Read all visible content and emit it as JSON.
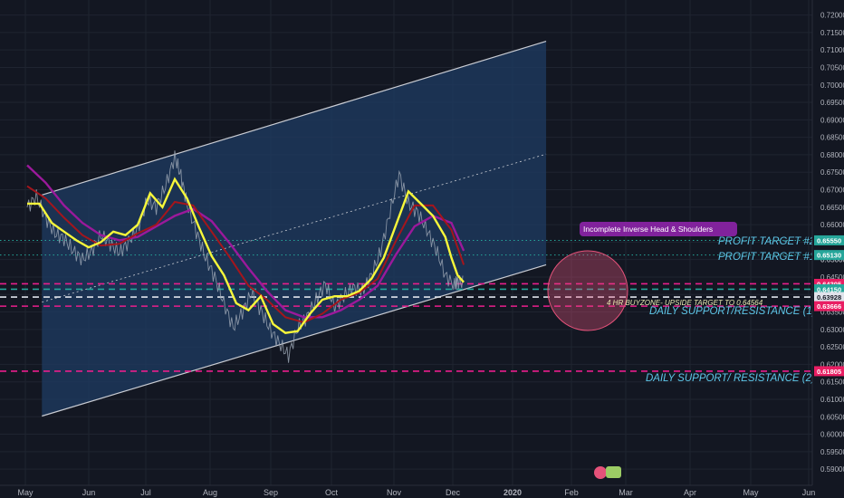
{
  "chart_data": {
    "type": "line",
    "instrument_note": "",
    "colors": {
      "background": "#131722",
      "channel_fill": "#1e3a5f",
      "channel_line": "#c9ccd3",
      "price": "#9aa4b3",
      "ma_fast": "#f7f73a",
      "ma_mid": "#a5151c",
      "ma_slow": "#9b199b",
      "green_level": "#26a69a",
      "pink_level": "#e91e8c",
      "white_level": "#e0e3eb",
      "cyan_text": "#5ec6e8",
      "circle": "#e5527a",
      "pattern_box": "#8e24aa"
    },
    "y_axis": {
      "ylim": [
        0.5895,
        0.7205
      ],
      "ticks": [
        "0.72000",
        "0.71500",
        "0.71000",
        "0.70500",
        "0.70000",
        "0.69500",
        "0.69000",
        "0.68500",
        "0.68000",
        "0.67500",
        "0.67000",
        "0.66500",
        "0.66000",
        "0.65500",
        "0.65000",
        "0.64500",
        "0.64000",
        "0.63500",
        "0.63000",
        "0.62500",
        "0.62000",
        "0.61500",
        "0.61000",
        "0.60500",
        "0.60000",
        "0.59500",
        "0.59000"
      ]
    },
    "x_axis": {
      "labels": [
        "May",
        "Jun",
        "Jul",
        "Aug",
        "Sep",
        "Oct",
        "Nov",
        "Dec",
        "2020",
        "Feb",
        "Mar",
        "Apr",
        "May",
        "Jun"
      ],
      "bold_label": "2020"
    },
    "price_labels": [
      {
        "value": "0.65550",
        "kind": "green"
      },
      {
        "value": "0.65130",
        "kind": "green"
      },
      {
        "value": "0.64305",
        "kind": "pink"
      },
      {
        "value": "0.64150",
        "kind": "green"
      },
      {
        "value": "0.63928",
        "kind": "white"
      },
      {
        "value": "0.63666",
        "kind": "pink"
      },
      {
        "value": "0.61805",
        "kind": "pink"
      }
    ],
    "partial_tick": "0.65000",
    "levels": [
      {
        "name": "PROFIT TARGET #2",
        "value": 0.6555,
        "style": "dotted",
        "kind": "green"
      },
      {
        "name": "PROFIT TARGET #1",
        "value": 0.6513,
        "style": "dotted",
        "kind": "green"
      },
      {
        "name": "",
        "value": 0.64305,
        "style": "dashed",
        "kind": "pink"
      },
      {
        "name": "",
        "value": 0.6415,
        "style": "dashed",
        "kind": "green"
      },
      {
        "name": "",
        "value": 0.63928,
        "style": "dashed",
        "kind": "white"
      },
      {
        "name": "DAILY SUPPORT/RESISTANCE (1)",
        "value": 0.63666,
        "style": "dashed",
        "kind": "pink"
      },
      {
        "name": "DAILY SUPPORT/ RESISTANCE (2)",
        "value": 0.61805,
        "style": "dashed",
        "kind": "pink"
      }
    ],
    "annotations": {
      "profit_target_2": "PROFIT TARGET #2",
      "profit_target_1": "PROFIT TARGET #1",
      "daily_sr_1": "DAILY SUPPORT/RESISTANCE (1)",
      "daily_sr_2": "DAILY SUPPORT/ RESISTANCE (2)",
      "buyzone": "4 HR BUYZONE- UPSIDE TARGET TO 0.64564",
      "pattern": "Incomplete Inverse Head & Shoulders"
    },
    "channel": {
      "upper": [
        [
          0.24,
          0.6685
        ],
        [
          8.44,
          0.7125
        ]
      ],
      "lower": [
        [
          0.24,
          0.6052
        ],
        [
          8.44,
          0.6485
        ]
      ],
      "mid": [
        [
          0.24,
          0.6378
        ],
        [
          8.44,
          0.6802
        ]
      ]
    },
    "price_series": {
      "x": [
        0,
        0.15,
        0.3,
        0.45,
        0.6,
        0.75,
        0.9,
        1.05,
        1.2,
        1.35,
        1.5,
        1.65,
        1.8,
        1.95,
        2.1,
        2.25,
        2.4,
        2.5,
        2.6,
        2.75,
        2.9,
        3.05,
        3.2,
        3.35,
        3.5,
        3.65,
        3.8,
        3.95,
        4.1,
        4.25,
        4.4,
        4.55,
        4.7,
        4.85,
        5.0,
        5.15,
        5.3,
        5.45,
        5.6,
        5.75,
        5.9,
        6.05,
        6.2,
        6.35,
        6.5,
        6.65,
        6.8,
        6.95,
        7.0,
        7.1
      ],
      "values": [
        0.665,
        0.668,
        0.662,
        0.6575,
        0.656,
        0.6525,
        0.65,
        0.6525,
        0.657,
        0.6545,
        0.652,
        0.655,
        0.659,
        0.667,
        0.665,
        0.671,
        0.6795,
        0.674,
        0.666,
        0.658,
        0.6505,
        0.645,
        0.6375,
        0.6305,
        0.635,
        0.6405,
        0.6355,
        0.63,
        0.626,
        0.6225,
        0.6305,
        0.6335,
        0.6385,
        0.643,
        0.6365,
        0.6395,
        0.642,
        0.641,
        0.6455,
        0.6525,
        0.6635,
        0.6745,
        0.666,
        0.6635,
        0.6585,
        0.653,
        0.6455,
        0.6425,
        0.644,
        0.643
      ]
    },
    "ma_fast": {
      "x": [
        0,
        0.2,
        0.4,
        0.6,
        0.8,
        1.0,
        1.2,
        1.4,
        1.6,
        1.8,
        2.0,
        2.2,
        2.4,
        2.6,
        2.8,
        3.0,
        3.2,
        3.4,
        3.6,
        3.8,
        4.0,
        4.2,
        4.4,
        4.6,
        4.8,
        5.0,
        5.2,
        5.4,
        5.6,
        5.8,
        6.0,
        6.2,
        6.4,
        6.6,
        6.8,
        6.9,
        7.0,
        7.1
      ],
      "values": [
        0.666,
        0.666,
        0.6605,
        0.658,
        0.6555,
        0.6535,
        0.655,
        0.658,
        0.657,
        0.66,
        0.669,
        0.665,
        0.673,
        0.6675,
        0.659,
        0.651,
        0.6455,
        0.6375,
        0.6355,
        0.6395,
        0.6315,
        0.629,
        0.6295,
        0.6345,
        0.6385,
        0.6395,
        0.6395,
        0.641,
        0.6445,
        0.6505,
        0.66,
        0.6695,
        0.666,
        0.6625,
        0.6565,
        0.6505,
        0.6455,
        0.6435
      ]
    },
    "ma_mid": {
      "x": [
        0,
        0.3,
        0.6,
        0.9,
        1.2,
        1.5,
        1.8,
        2.1,
        2.4,
        2.7,
        3.0,
        3.3,
        3.6,
        3.9,
        4.2,
        4.5,
        4.8,
        5.1,
        5.4,
        5.7,
        6.0,
        6.3,
        6.6,
        6.9,
        7.1
      ],
      "values": [
        0.671,
        0.6675,
        0.662,
        0.657,
        0.654,
        0.6545,
        0.6575,
        0.66,
        0.6665,
        0.6655,
        0.658,
        0.6505,
        0.6425,
        0.6385,
        0.6335,
        0.632,
        0.6345,
        0.6385,
        0.6405,
        0.6445,
        0.6555,
        0.6655,
        0.6655,
        0.6585,
        0.6485
      ]
    },
    "ma_slow": {
      "x": [
        0,
        0.3,
        0.6,
        0.9,
        1.2,
        1.5,
        1.8,
        2.1,
        2.4,
        2.7,
        3.0,
        3.3,
        3.6,
        3.9,
        4.2,
        4.5,
        4.8,
        5.1,
        5.4,
        5.7,
        6.0,
        6.3,
        6.6,
        6.9,
        7.1
      ],
      "values": [
        0.677,
        0.672,
        0.6655,
        0.6605,
        0.657,
        0.6555,
        0.6565,
        0.6595,
        0.6625,
        0.6645,
        0.661,
        0.6545,
        0.6475,
        0.641,
        0.6355,
        0.6335,
        0.6335,
        0.6355,
        0.6385,
        0.6425,
        0.6515,
        0.6595,
        0.6625,
        0.6605,
        0.6525
      ]
    }
  }
}
